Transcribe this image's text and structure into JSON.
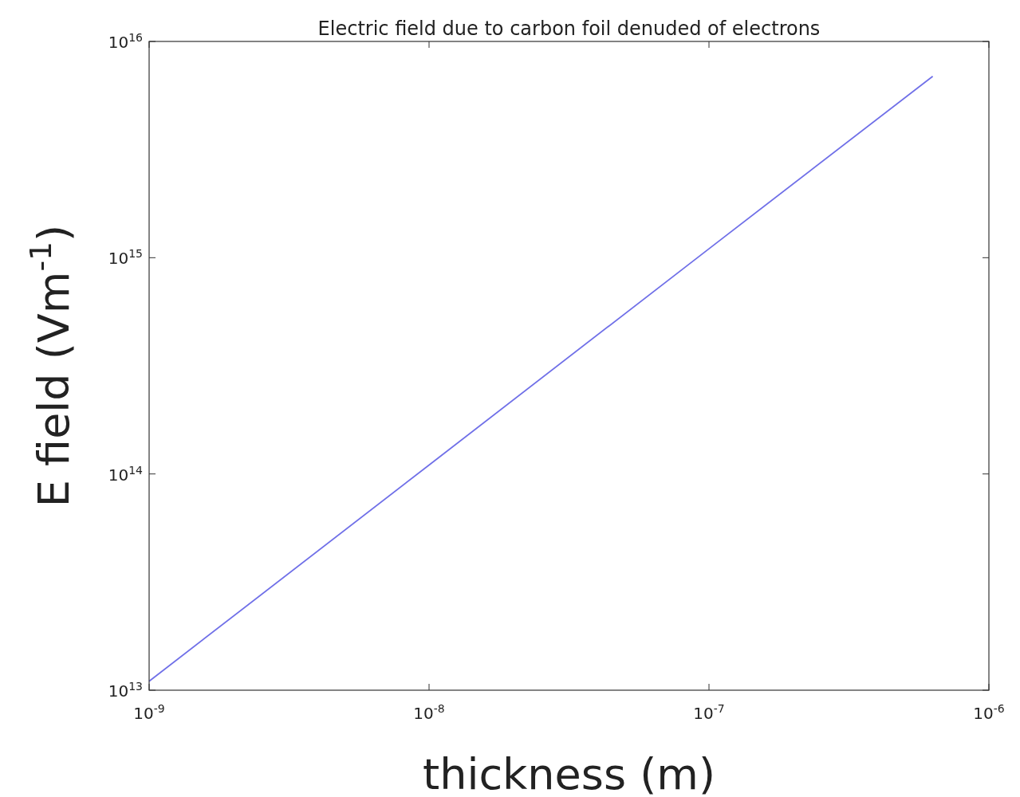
{
  "chart_data": {
    "type": "line",
    "title": "Electric field due to carbon foil denuded of electrons",
    "xlabel": "thickness (m)",
    "ylabel": "E field (Vm$^{-1}$)",
    "log": "xy",
    "grid": false,
    "marker": "none",
    "line_style": "solid",
    "x": [
      1e-09,
      1e-08,
      1e-07,
      6.3e-07
    ],
    "series": [
      {
        "color": "#7070e8",
        "values": [
          11000000000000.0,
          110000000000000.0,
          1100000000000000.0,
          6900000000000000.0
        ]
      }
    ],
    "xlim": [
      1e-09,
      1e-06
    ],
    "ylim": [
      10000000000000.0,
      1e+16
    ],
    "xticks": [
      {
        "value": 1e-09,
        "label": "10$^{-9}$"
      },
      {
        "value": 1e-08,
        "label": "10$^{-8}$"
      },
      {
        "value": 1e-07,
        "label": "10$^{-7}$"
      },
      {
        "value": 1e-06,
        "label": "10$^{-6}$"
      }
    ],
    "yticks": [
      {
        "value": 10000000000000.0,
        "label": "10$^{13}$"
      },
      {
        "value": 100000000000000.0,
        "label": "10$^{14}$"
      },
      {
        "value": 1000000000000000.0,
        "label": "10$^{15}$"
      },
      {
        "value": 1e+16,
        "label": "10$^{16}$"
      }
    ]
  }
}
